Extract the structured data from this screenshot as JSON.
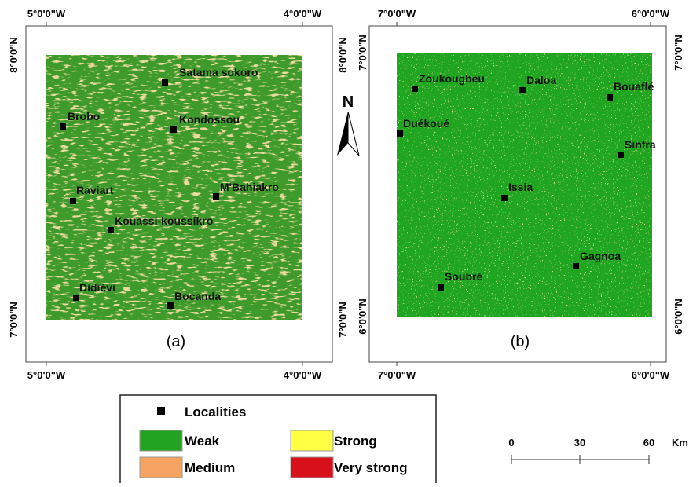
{
  "maps": [
    {
      "caption": "(a)",
      "top_labels": [
        "5°0'0\"W",
        "4°0'0\"W"
      ],
      "bottom_labels": [
        "5°0'0\"W",
        "4°0'0\"W"
      ],
      "left_labels": [
        "8°0'0\"N",
        "7°0'0\"N"
      ],
      "right_labels": [
        "8°0'0\"N",
        "7°0'0\"N"
      ],
      "localities": [
        "Satama sokoro",
        "Brobo",
        "Kondossou",
        "M'Bahiakro",
        "Raviart",
        "Kouassi-koussikro",
        "Didiévi",
        "Bocanda"
      ]
    },
    {
      "caption": "(b)",
      "top_labels": [
        "7°0'0\"W",
        "6°0'0\"W"
      ],
      "bottom_labels": [
        "7°0'0\"W",
        "6°0'0\"W"
      ],
      "left_labels": [
        "7°0'0\"N",
        "6°0'0\"N"
      ],
      "right_labels": [
        "7°0'0\"N",
        "6°0'0\"N"
      ],
      "localities": [
        "Zoukougbeu",
        "Daloa",
        "Bouaflé",
        "Duékoué",
        "Sinfra",
        "Issia",
        "Gagnoa",
        "Soubré"
      ]
    }
  ],
  "north": "N",
  "legend": {
    "title": "Localities",
    "items": [
      {
        "label": "Weak",
        "color": "#22a322"
      },
      {
        "label": "Medium",
        "color": "#f4a460"
      },
      {
        "label": "Strong",
        "color": "#ffff44"
      },
      {
        "label": "Very strong",
        "color": "#d7101a"
      }
    ]
  },
  "scale": {
    "ticks": [
      "0",
      "30",
      "60"
    ],
    "unit": "Km"
  }
}
